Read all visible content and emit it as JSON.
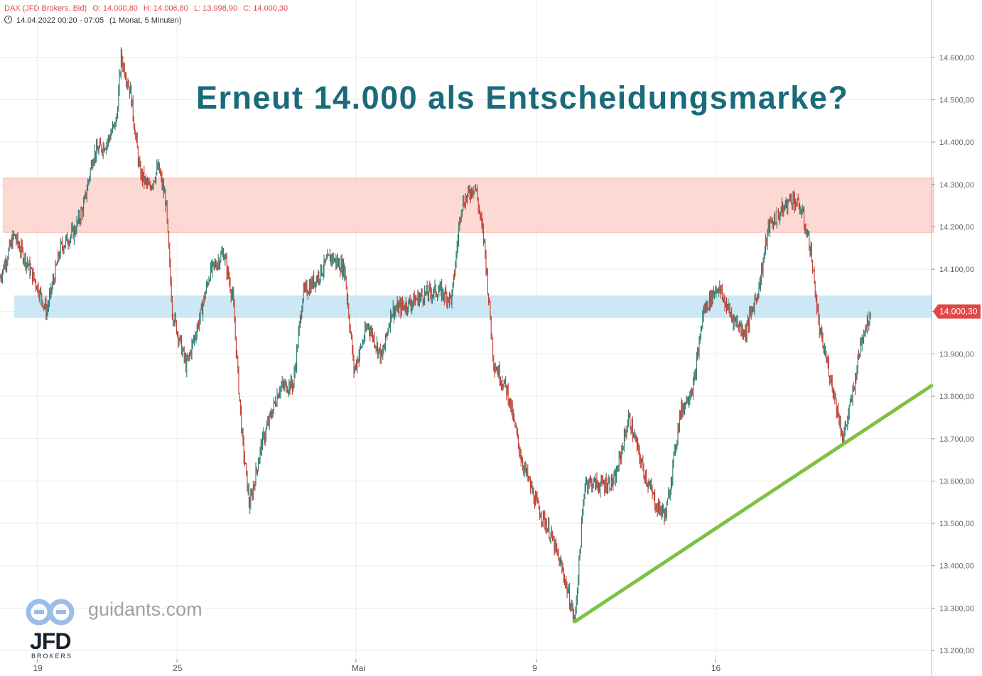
{
  "header": {
    "symbol": "DAX (JFD Brokers, Bid)",
    "open": "O: 14.000,80",
    "high": "H: 14.006,80",
    "low": "L: 13.998,90",
    "close": "C: 14.000,30",
    "range": "14.04.2022 00:20 - 07:05",
    "interval": "(1 Monat, 5 Minuten)"
  },
  "headline": "Erneut 14.000 als Entscheidungsmarke?",
  "brand": {
    "site": "guidants.com",
    "logo_text": "JFD",
    "logo_sub": "BROKERS"
  },
  "colors": {
    "up": "#2a7a70",
    "down": "#c0392b",
    "resistance_zone": "#fdd5cf",
    "support_zone": "#c6e6f4",
    "trendline": "#7dc243",
    "price_badge": "#e24646",
    "headline": "#1a6b7a"
  },
  "chart_data": {
    "type": "line",
    "instrument": "DAX",
    "timeframe": "5 Minuten",
    "ylim": [
      13180,
      14660
    ],
    "y_ticks": [
      13200,
      13300,
      13400,
      13500,
      13600,
      13700,
      13800,
      13900,
      14000,
      14100,
      14200,
      14300,
      14400,
      14500,
      14600
    ],
    "y_tick_labels": [
      "13.200,00",
      "13.300,00",
      "13.400,00",
      "13.500,00",
      "13.600,00",
      "13.700,00",
      "13.800,00",
      "13.900,00",
      "14.000,00",
      "14.100,00",
      "14.200,00",
      "14.300,00",
      "14.400,00",
      "14.500,00",
      "14.600,00"
    ],
    "x_ticks": [
      {
        "label": "19",
        "t": 0.04
      },
      {
        "label": "25",
        "t": 0.19
      },
      {
        "label": "Mai",
        "t": 0.382
      },
      {
        "label": "9",
        "t": 0.576
      },
      {
        "label": "16",
        "t": 0.768
      }
    ],
    "xlim": [
      0,
      1
    ],
    "price_path": [
      [
        0.0,
        14080
      ],
      [
        0.015,
        14180
      ],
      [
        0.03,
        14110
      ],
      [
        0.04,
        14060
      ],
      [
        0.05,
        14000
      ],
      [
        0.065,
        14150
      ],
      [
        0.08,
        14190
      ],
      [
        0.09,
        14250
      ],
      [
        0.1,
        14370
      ],
      [
        0.115,
        14400
      ],
      [
        0.125,
        14450
      ],
      [
        0.13,
        14600
      ],
      [
        0.14,
        14520
      ],
      [
        0.15,
        14330
      ],
      [
        0.16,
        14290
      ],
      [
        0.17,
        14340
      ],
      [
        0.178,
        14260
      ],
      [
        0.185,
        14000
      ],
      [
        0.2,
        13870
      ],
      [
        0.215,
        13990
      ],
      [
        0.225,
        14090
      ],
      [
        0.24,
        14140
      ],
      [
        0.25,
        14030
      ],
      [
        0.26,
        13700
      ],
      [
        0.268,
        13540
      ],
      [
        0.28,
        13680
      ],
      [
        0.3,
        13820
      ],
      [
        0.315,
        13830
      ],
      [
        0.325,
        14040
      ],
      [
        0.34,
        14080
      ],
      [
        0.355,
        14130
      ],
      [
        0.37,
        14100
      ],
      [
        0.38,
        13860
      ],
      [
        0.395,
        13970
      ],
      [
        0.41,
        13890
      ],
      [
        0.42,
        14000
      ],
      [
        0.44,
        14020
      ],
      [
        0.455,
        14040
      ],
      [
        0.47,
        14050
      ],
      [
        0.485,
        14030
      ],
      [
        0.495,
        14250
      ],
      [
        0.51,
        14300
      ],
      [
        0.52,
        14160
      ],
      [
        0.53,
        13880
      ],
      [
        0.545,
        13810
      ],
      [
        0.56,
        13650
      ],
      [
        0.575,
        13550
      ],
      [
        0.59,
        13480
      ],
      [
        0.605,
        13380
      ],
      [
        0.617,
        13270
      ],
      [
        0.628,
        13600
      ],
      [
        0.645,
        13590
      ],
      [
        0.66,
        13600
      ],
      [
        0.675,
        13750
      ],
      [
        0.69,
        13630
      ],
      [
        0.705,
        13540
      ],
      [
        0.715,
        13520
      ],
      [
        0.73,
        13760
      ],
      [
        0.745,
        13830
      ],
      [
        0.755,
        14000
      ],
      [
        0.77,
        14060
      ],
      [
        0.785,
        13990
      ],
      [
        0.8,
        13950
      ],
      [
        0.815,
        14060
      ],
      [
        0.825,
        14200
      ],
      [
        0.84,
        14240
      ],
      [
        0.85,
        14270
      ],
      [
        0.86,
        14240
      ],
      [
        0.87,
        14150
      ],
      [
        0.88,
        13950
      ],
      [
        0.89,
        13860
      ],
      [
        0.895,
        13810
      ],
      [
        0.905,
        13700
      ],
      [
        0.915,
        13800
      ],
      [
        0.925,
        13940
      ],
      [
        0.935,
        14000
      ]
    ],
    "last_price": 14000.3,
    "last_price_label": "14.000,30",
    "resistance_zone": [
      14187,
      14315
    ],
    "support_zone": [
      13985,
      14038
    ],
    "trendline": [
      [
        0.617,
        13268
      ],
      [
        1.0,
        13825
      ]
    ]
  }
}
